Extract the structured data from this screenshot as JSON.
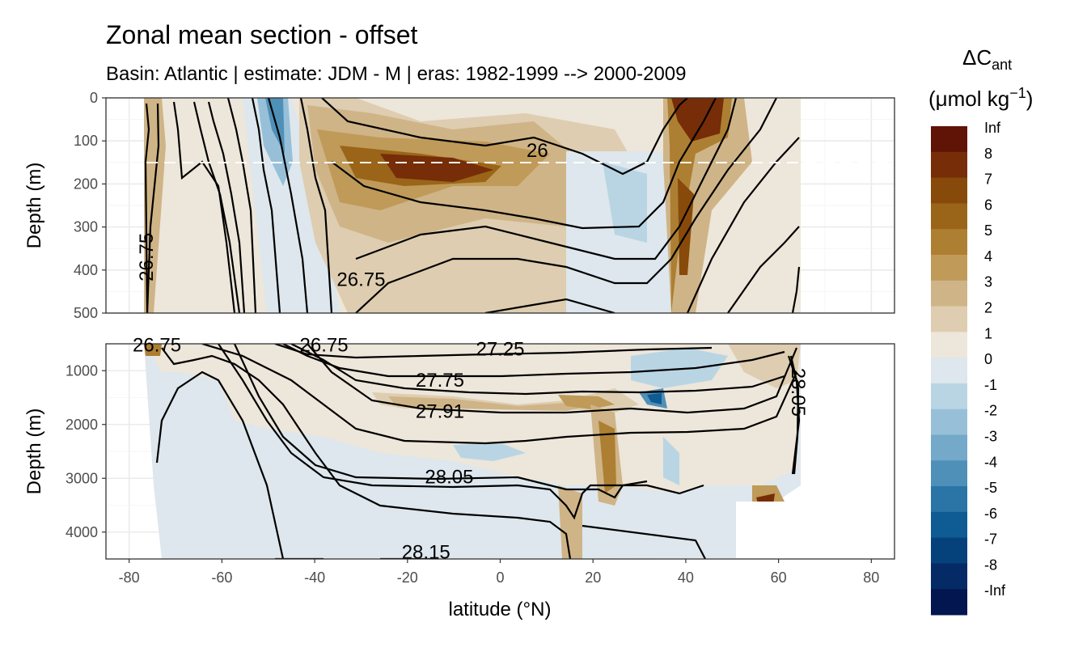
{
  "chart_data": {
    "type": "contour",
    "title": "Zonal mean section - offset",
    "subtitle": "Basin: Atlantic | estimate: JDM - M | eras: 1982-1999 --> 2000-2009",
    "xlabel": "latitude (°N)",
    "xlim": [
      -85,
      85
    ],
    "xticks": [
      -80,
      -60,
      -40,
      -20,
      0,
      20,
      40,
      60,
      80
    ],
    "panels": [
      {
        "name": "upper",
        "ylabel": "Depth (m)",
        "ylim": [
          500,
          0
        ],
        "yticks": [
          0,
          100,
          200,
          300,
          400,
          500
        ],
        "reference_line_depth": 150
      },
      {
        "name": "lower",
        "ylabel": "Depth (m)",
        "ylim": [
          4500,
          500
        ],
        "yticks": [
          1000,
          2000,
          3000,
          4000
        ]
      }
    ],
    "isopycnal_labels": [
      {
        "panel": "upper",
        "text": "26",
        "lat": 8,
        "depth": 125
      },
      {
        "panel": "upper",
        "text": "26.75",
        "lat": -30,
        "depth": 425
      },
      {
        "panel": "upper",
        "text": "26.75",
        "lat": -76,
        "depth": 370,
        "rotated": true
      },
      {
        "panel": "lower",
        "text": "26.75",
        "lat": -74,
        "depth": 550
      },
      {
        "panel": "lower",
        "text": "26.75",
        "lat": -38,
        "depth": 550
      },
      {
        "panel": "lower",
        "text": "27.25",
        "lat": 0,
        "depth": 620
      },
      {
        "panel": "lower",
        "text": "27.75",
        "lat": -13,
        "depth": 1200
      },
      {
        "panel": "lower",
        "text": "27.91",
        "lat": -13,
        "depth": 1780
      },
      {
        "panel": "lower",
        "text": "28.05",
        "lat": -11,
        "depth": 3000
      },
      {
        "panel": "lower",
        "text": "28.15",
        "lat": -16,
        "depth": 4400
      },
      {
        "panel": "lower",
        "text": "28.05",
        "lat": 64,
        "depth": 1400,
        "rotated": true
      }
    ],
    "legend": {
      "title_main": "ΔC",
      "title_sub": "ant",
      "units": "(μmol kg",
      "units_sup": "−1",
      "units_close": ")",
      "placement": "right",
      "bins": [
        {
          "label": "Inf",
          "color": "#5f1406"
        },
        {
          "label": "8",
          "color": "#762d08"
        },
        {
          "label": "7",
          "color": "#874a0b"
        },
        {
          "label": "6",
          "color": "#9a6518"
        },
        {
          "label": "5",
          "color": "#ad7f33"
        },
        {
          "label": "4",
          "color": "#bf9a59"
        },
        {
          "label": "3",
          "color": "#cfb487"
        },
        {
          "label": "2",
          "color": "#decdb0"
        },
        {
          "label": "1",
          "color": "#ede6da"
        },
        {
          "label": "0",
          "color": "#dde7ed"
        },
        {
          "label": "-1",
          "color": "#b9d5e4"
        },
        {
          "label": "-2",
          "color": "#97c0d8"
        },
        {
          "label": "-3",
          "color": "#74a9c9"
        },
        {
          "label": "-4",
          "color": "#4f90b8"
        },
        {
          "label": "-5",
          "color": "#2a75a5"
        },
        {
          "label": "-6",
          "color": "#0e5c93"
        },
        {
          "label": "-7",
          "color": "#05427c"
        },
        {
          "label": "-8",
          "color": "#052b67"
        },
        {
          "label": "-Inf",
          "color": "#04164f"
        }
      ]
    }
  }
}
